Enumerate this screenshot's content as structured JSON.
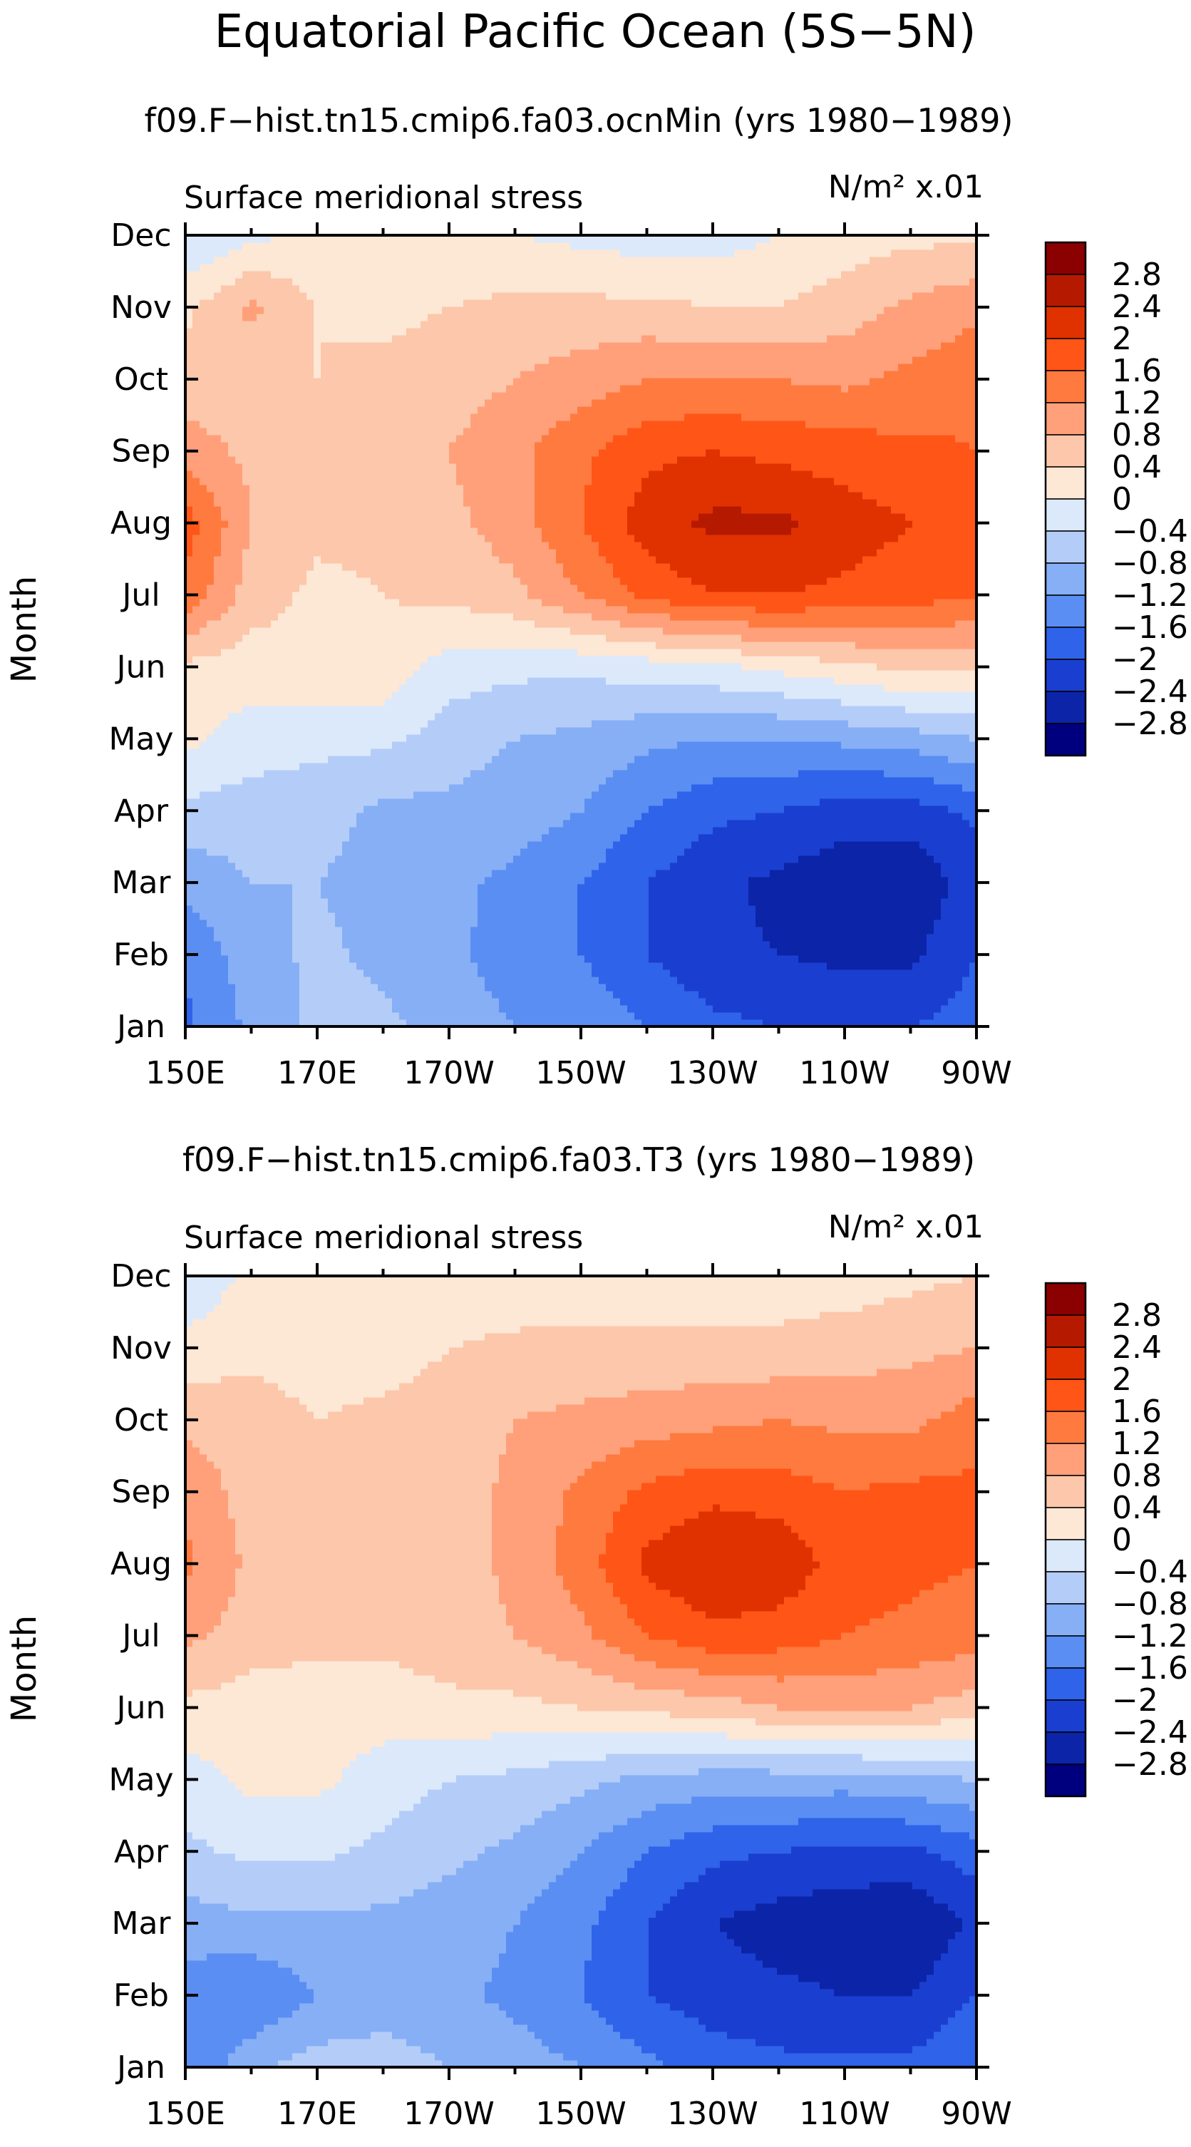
{
  "title": "Equatorial Pacific Ocean (5S−5N)",
  "colorbar": {
    "levels": [
      "2.8",
      "2.4",
      "2",
      "1.6",
      "1.2",
      "0.8",
      "0.4",
      "0",
      "−0.4",
      "−0.8",
      "−1.2",
      "−1.6",
      "−2",
      "−2.4",
      "−2.8"
    ],
    "colors": [
      "#8b0000",
      "#b51a00",
      "#e03200",
      "#ff5517",
      "#ff7a3f",
      "#ffa07a",
      "#fcc7aa",
      "#fde7d5",
      "#dbe9fb",
      "#b4cdf8",
      "#86aff6",
      "#5a8ef2",
      "#2e63ea",
      "#1a3fd0",
      "#0c24a8",
      "#00007f"
    ]
  },
  "chart_data": [
    {
      "type": "heatmap",
      "subtitle": "f09.F−hist.tn15.cmip6.fa03.ocnMin (yrs 1980−1989)",
      "field_label": "Surface meridional stress",
      "units_label": "N/m² x.01",
      "ylabel": "Month",
      "x_ticks": [
        "150E",
        "170E",
        "170W",
        "150W",
        "130W",
        "110W",
        "90W"
      ],
      "y_ticks": [
        "Jan",
        "Feb",
        "Mar",
        "Apr",
        "May",
        "Jun",
        "Jul",
        "Aug",
        "Sep",
        "Oct",
        "Nov",
        "Dec"
      ],
      "x_axis": "longitude_degE",
      "x": [
        150,
        160,
        170,
        180,
        190,
        200,
        210,
        220,
        230,
        240,
        250,
        260,
        270
      ],
      "months": [
        "Jan",
        "Feb",
        "Mar",
        "Apr",
        "May",
        "Jun",
        "Jul",
        "Aug",
        "Sep",
        "Oct",
        "Nov",
        "Dec"
      ],
      "z": [
        [
          -1.7,
          -1.1,
          -0.7,
          -0.7,
          -1.0,
          -1.2,
          -1.3,
          -1.6,
          -1.9,
          -2.0,
          -2.0,
          -2.0,
          -1.8
        ],
        [
          -1.5,
          -1.0,
          -0.7,
          -0.9,
          -1.1,
          -1.4,
          -1.6,
          -2.0,
          -2.3,
          -2.4,
          -2.5,
          -2.5,
          -2.0
        ],
        [
          -1.1,
          -0.8,
          -0.8,
          -1.0,
          -1.1,
          -1.3,
          -1.6,
          -2.0,
          -2.3,
          -2.5,
          -2.7,
          -2.7,
          -2.2
        ],
        [
          -0.5,
          -0.6,
          -0.6,
          -0.9,
          -0.9,
          -1.0,
          -1.2,
          -1.6,
          -1.9,
          -2.0,
          -2.2,
          -2.2,
          -1.9
        ],
        [
          0.1,
          -0.2,
          -0.3,
          -0.3,
          -0.6,
          -0.8,
          -0.9,
          -1.1,
          -1.2,
          -1.2,
          -1.1,
          -1.0,
          -0.8
        ],
        [
          0.3,
          0.2,
          0.3,
          0.3,
          -0.2,
          -0.3,
          -0.3,
          -0.2,
          -0.1,
          0.1,
          0.3,
          0.5,
          0.5
        ],
        [
          1.5,
          0.6,
          0.3,
          0.4,
          0.5,
          0.7,
          1.2,
          1.7,
          2.0,
          2.0,
          1.9,
          1.8,
          1.6
        ],
        [
          1.8,
          0.8,
          0.5,
          0.5,
          0.7,
          1.0,
          1.6,
          2.2,
          2.5,
          2.5,
          2.2,
          2.0,
          1.8
        ],
        [
          1.0,
          0.7,
          0.5,
          0.6,
          0.8,
          1.1,
          1.5,
          1.9,
          2.0,
          1.9,
          1.8,
          1.7,
          1.6
        ],
        [
          0.6,
          0.5,
          0.4,
          0.5,
          0.6,
          0.8,
          1.0,
          1.2,
          1.2,
          1.2,
          1.1,
          1.3,
          1.5
        ],
        [
          0.3,
          0.9,
          0.4,
          0.3,
          0.4,
          0.5,
          0.5,
          0.5,
          0.4,
          0.4,
          0.6,
          0.9,
          1.1
        ],
        [
          -0.4,
          -0.1,
          0.1,
          0.2,
          0.1,
          0.0,
          -0.1,
          -0.2,
          -0.2,
          0.0,
          0.2,
          0.3,
          0.3
        ]
      ]
    },
    {
      "type": "heatmap",
      "subtitle": "f09.F−hist.tn15.cmip6.fa03.T3 (yrs 1980−1989)",
      "field_label": "Surface meridional stress",
      "units_label": "N/m² x.01",
      "ylabel": "Month",
      "x_ticks": [
        "150E",
        "170E",
        "170W",
        "150W",
        "130W",
        "110W",
        "90W"
      ],
      "y_ticks": [
        "Jan",
        "Feb",
        "Mar",
        "Apr",
        "May",
        "Jun",
        "Jul",
        "Aug",
        "Sep",
        "Oct",
        "Nov",
        "Dec"
      ],
      "x_axis": "longitude_degE",
      "x": [
        150,
        160,
        170,
        180,
        190,
        200,
        210,
        220,
        230,
        240,
        250,
        260,
        270
      ],
      "months": [
        "Jan",
        "Feb",
        "Mar",
        "Apr",
        "May",
        "Jun",
        "Jul",
        "Aug",
        "Sep",
        "Oct",
        "Nov",
        "Dec"
      ],
      "z": [
        [
          -1.6,
          -0.9,
          -0.6,
          -0.6,
          -0.8,
          -1.0,
          -1.2,
          -1.5,
          -1.8,
          -1.9,
          -1.9,
          -1.9,
          -1.6
        ],
        [
          -1.4,
          -1.6,
          -1.2,
          -1.0,
          -1.1,
          -1.3,
          -1.6,
          -2.0,
          -2.2,
          -2.3,
          -2.4,
          -2.4,
          -2.0
        ],
        [
          -1.0,
          -0.9,
          -0.9,
          -0.9,
          -1.0,
          -1.2,
          -1.5,
          -2.0,
          -2.4,
          -2.6,
          -2.7,
          -2.8,
          -2.3
        ],
        [
          -0.5,
          -0.3,
          -0.3,
          -0.5,
          -0.7,
          -0.9,
          -1.2,
          -1.6,
          -1.9,
          -2.0,
          -2.1,
          -2.1,
          -1.8
        ],
        [
          -0.2,
          0.1,
          0.1,
          -0.2,
          -0.4,
          -0.5,
          -0.7,
          -0.9,
          -1.0,
          -1.0,
          -1.0,
          -0.9,
          -0.8
        ],
        [
          0.3,
          0.2,
          0.2,
          0.2,
          0.3,
          0.3,
          0.4,
          0.5,
          0.6,
          0.8,
          0.9,
          0.8,
          0.6
        ],
        [
          0.9,
          0.6,
          0.5,
          0.5,
          0.6,
          0.8,
          1.1,
          1.6,
          1.9,
          1.8,
          1.6,
          1.5,
          1.4
        ],
        [
          1.3,
          0.7,
          0.5,
          0.5,
          0.6,
          0.9,
          1.4,
          2.1,
          2.4,
          2.3,
          1.8,
          1.7,
          1.6
        ],
        [
          1.1,
          0.6,
          0.5,
          0.5,
          0.6,
          0.9,
          1.3,
          1.7,
          1.9,
          1.8,
          1.6,
          1.7,
          1.7
        ],
        [
          0.7,
          0.6,
          0.4,
          0.5,
          0.6,
          0.8,
          0.9,
          1.0,
          1.1,
          1.2,
          1.1,
          1.1,
          1.4
        ],
        [
          0.1,
          0.3,
          0.2,
          0.2,
          0.4,
          0.5,
          0.5,
          0.5,
          0.5,
          0.5,
          0.6,
          0.7,
          0.8
        ],
        [
          -0.3,
          0.1,
          0.2,
          0.2,
          0.1,
          0.1,
          0.2,
          0.2,
          0.2,
          0.2,
          0.2,
          0.3,
          0.4
        ]
      ]
    }
  ]
}
